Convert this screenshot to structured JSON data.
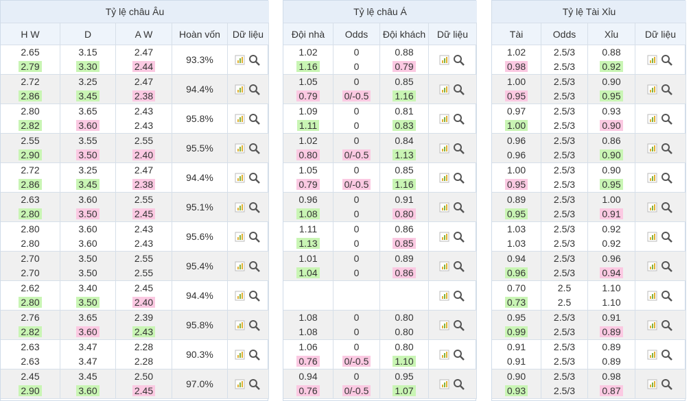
{
  "sections": [
    {
      "title": "Tỷ lệ châu Âu",
      "headers": [
        "H W",
        "D",
        "A W",
        "Hoàn vốn",
        "Dữ liệu"
      ],
      "rows": [
        {
          "open": [
            "2.65",
            "3.15",
            "2.47"
          ],
          "current": [
            "2.79",
            "3.30",
            "2.44"
          ],
          "payout": "93.3%"
        },
        {
          "open": [
            "2.72",
            "3.25",
            "2.47"
          ],
          "current": [
            "2.86",
            "3.45",
            "2.38"
          ],
          "payout": "94.4%"
        },
        {
          "open": [
            "2.80",
            "3.65",
            "2.43"
          ],
          "current": [
            "2.82",
            "3.60",
            "2.43"
          ],
          "payout": "95.8%"
        },
        {
          "open": [
            "2.55",
            "3.55",
            "2.55"
          ],
          "current": [
            "2.90",
            "3.50",
            "2.40"
          ],
          "payout": "95.5%"
        },
        {
          "open": [
            "2.72",
            "3.25",
            "2.47"
          ],
          "current": [
            "2.86",
            "3.45",
            "2.38"
          ],
          "payout": "94.4%"
        },
        {
          "open": [
            "2.63",
            "3.60",
            "2.55"
          ],
          "current": [
            "2.80",
            "3.50",
            "2.45"
          ],
          "payout": "95.1%"
        },
        {
          "open": [
            "2.80",
            "3.60",
            "2.43"
          ],
          "current": [
            "2.80",
            "3.60",
            "2.43"
          ],
          "payout": "95.6%"
        },
        {
          "open": [
            "2.70",
            "3.50",
            "2.55"
          ],
          "current": [
            "2.70",
            "3.50",
            "2.55"
          ],
          "payout": "95.4%"
        },
        {
          "open": [
            "2.62",
            "3.40",
            "2.45"
          ],
          "current": [
            "2.80",
            "3.50",
            "2.40"
          ],
          "payout": "94.4%"
        },
        {
          "open": [
            "2.76",
            "3.65",
            "2.39"
          ],
          "current": [
            "2.82",
            "3.60",
            "2.43"
          ],
          "payout": "95.8%"
        },
        {
          "open": [
            "2.63",
            "3.47",
            "2.28"
          ],
          "current": [
            "2.63",
            "3.47",
            "2.28"
          ],
          "payout": "90.3%"
        },
        {
          "open": [
            "2.45",
            "3.45",
            "2.50"
          ],
          "current": [
            "2.90",
            "3.60",
            "2.45"
          ],
          "payout": "97.0%"
        }
      ]
    },
    {
      "title": "Tỷ lệ châu Á",
      "headers": [
        "Đội nhà",
        "Odds",
        "Đội khách",
        "Dữ liệu"
      ],
      "rows": [
        {
          "open": [
            "1.02",
            "0",
            "0.88"
          ],
          "current": [
            "1.16",
            "0",
            "0.79"
          ]
        },
        {
          "open": [
            "1.05",
            "0",
            "0.85"
          ],
          "current": [
            "0.79",
            "0/-0.5",
            "1.16"
          ]
        },
        {
          "open": [
            "1.09",
            "0",
            "0.81"
          ],
          "current": [
            "1.11",
            "0",
            "0.83"
          ]
        },
        {
          "open": [
            "1.02",
            "0",
            "0.84"
          ],
          "current": [
            "0.80",
            "0/-0.5",
            "1.13"
          ]
        },
        {
          "open": [
            "1.05",
            "0",
            "0.85"
          ],
          "current": [
            "0.79",
            "0/-0.5",
            "1.16"
          ]
        },
        {
          "open": [
            "0.96",
            "0",
            "0.91"
          ],
          "current": [
            "1.08",
            "0",
            "0.80"
          ]
        },
        {
          "open": [
            "1.11",
            "0",
            "0.86"
          ],
          "current": [
            "1.13",
            "0",
            "0.85"
          ]
        },
        {
          "open": [
            "1.01",
            "0",
            "0.89"
          ],
          "current": [
            "1.04",
            "0",
            "0.86"
          ]
        },
        {
          "open": null,
          "current": null
        },
        {
          "open": [
            "1.08",
            "0",
            "0.80"
          ],
          "current": [
            "1.08",
            "0",
            "0.80"
          ]
        },
        {
          "open": [
            "1.06",
            "0",
            "0.80"
          ],
          "current": [
            "0.76",
            "0/-0.5",
            "1.10"
          ]
        },
        {
          "open": [
            "0.94",
            "0",
            "0.95"
          ],
          "current": [
            "0.76",
            "0/-0.5",
            "1.07"
          ]
        }
      ]
    },
    {
      "title": "Tỷ lệ Tài Xỉu",
      "headers": [
        "Tài",
        "Odds",
        "Xỉu",
        "Dữ liệu"
      ],
      "rows": [
        {
          "open": [
            "1.02",
            "2.5/3",
            "0.88"
          ],
          "current": [
            "0.98",
            "2.5/3",
            "0.92"
          ]
        },
        {
          "open": [
            "1.00",
            "2.5/3",
            "0.90"
          ],
          "current": [
            "0.95",
            "2.5/3",
            "0.95"
          ]
        },
        {
          "open": [
            "0.97",
            "2.5/3",
            "0.93"
          ],
          "current": [
            "1.00",
            "2.5/3",
            "0.90"
          ]
        },
        {
          "open": [
            "0.96",
            "2.5/3",
            "0.86"
          ],
          "current": [
            "0.96",
            "2.5/3",
            "0.90"
          ]
        },
        {
          "open": [
            "1.00",
            "2.5/3",
            "0.90"
          ],
          "current": [
            "0.95",
            "2.5/3",
            "0.95"
          ]
        },
        {
          "open": [
            "0.89",
            "2.5/3",
            "1.00"
          ],
          "current": [
            "0.95",
            "2.5/3",
            "0.91"
          ]
        },
        {
          "open": [
            "1.03",
            "2.5/3",
            "0.92"
          ],
          "current": [
            "1.03",
            "2.5/3",
            "0.92"
          ]
        },
        {
          "open": [
            "0.94",
            "2.5/3",
            "0.96"
          ],
          "current": [
            "0.96",
            "2.5/3",
            "0.94"
          ]
        },
        {
          "open": [
            "0.70",
            "2.5",
            "1.10"
          ],
          "current": [
            "0.73",
            "2.5",
            "1.10"
          ]
        },
        {
          "open": [
            "0.95",
            "2.5/3",
            "0.91"
          ],
          "current": [
            "0.99",
            "2.5/3",
            "0.89"
          ]
        },
        {
          "open": [
            "0.91",
            "2.5/3",
            "0.89"
          ],
          "current": [
            "0.91",
            "2.5/3",
            "0.89"
          ]
        },
        {
          "open": [
            "0.90",
            "2.5/3",
            "0.98"
          ],
          "current": [
            "0.93",
            "2.5/3",
            "0.87"
          ]
        }
      ]
    }
  ]
}
